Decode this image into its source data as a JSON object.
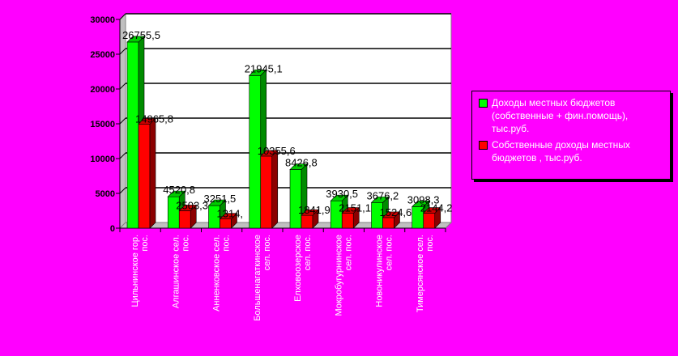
{
  "chart_data": {
    "type": "bar",
    "categories": [
      "Цильнинское гор. пос.",
      "Алгашинское сел. пос.",
      "Анненковское сел. пос.",
      "Большенагаткинское сел. пос.",
      "Елховоозерское сел. пос.",
      "Мокробугурнинское сел. пос.",
      "Новоникулинское сел. пос.",
      "Тимерсянское сел. пос."
    ],
    "series": [
      {
        "name": "Доходы местных бюджетов (собственные + фин.помощь), тыс.руб.",
        "color": "#00ff00",
        "values": [
          26755.5,
          4520.8,
          3251.5,
          21945.1,
          8426.8,
          3930.5,
          3676.2,
          3098.3
        ],
        "labels": [
          "26755,5",
          "4520,8",
          "3251,5",
          "21945,1",
          "8426,8",
          "3930,5",
          "3676,2",
          "3098,3"
        ]
      },
      {
        "name": "Собственные доходы местных бюджетов , тыс.руб.",
        "color": "#ff0000",
        "values": [
          14965.8,
          2503.3,
          1314.0,
          10355.6,
          1841.9,
          2151.1,
          1524.6,
          2144.2
        ],
        "labels": [
          "14965,8",
          "2503,3",
          "1314,",
          "10355,6",
          "1841,9",
          "2151,1",
          "1524,6",
          "2144,2"
        ]
      }
    ],
    "ylim": [
      0,
      30000
    ],
    "yticks": [
      0,
      5000,
      10000,
      15000,
      20000,
      25000,
      30000
    ],
    "grid": true,
    "plot_background": "#ffffff",
    "legend_position": "right",
    "title": "",
    "xlabel": "",
    "ylabel": ""
  }
}
